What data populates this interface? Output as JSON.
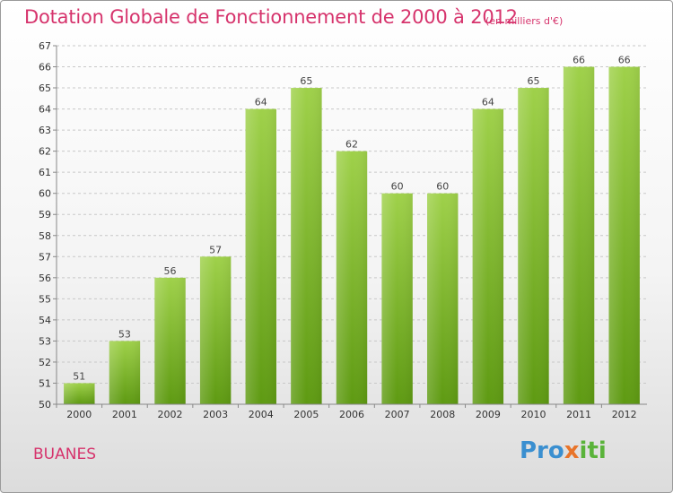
{
  "header": {
    "title": "Dotation Globale de Fonctionnement de 2000 à 2012",
    "unit": "(en milliers d'€)"
  },
  "footer": {
    "commune": "BUANES",
    "logo": [
      "Pro",
      "x",
      "iti"
    ]
  },
  "colors": {
    "accent": "#d6336c",
    "bar_light": "#9fd14a",
    "bar_dark": "#5e9a12"
  },
  "chart_data": {
    "type": "bar",
    "title": "Dotation Globale de Fonctionnement de 2000 à 2012",
    "categories": [
      "2000",
      "2001",
      "2002",
      "2003",
      "2004",
      "2005",
      "2006",
      "2007",
      "2008",
      "2009",
      "2010",
      "2011",
      "2012"
    ],
    "values": [
      51,
      53,
      56,
      57,
      64,
      65,
      62,
      60,
      60,
      64,
      65,
      66,
      66
    ],
    "ylim": [
      50,
      67
    ],
    "yticks": [
      50,
      51,
      52,
      53,
      54,
      55,
      56,
      57,
      58,
      59,
      60,
      61,
      62,
      63,
      64,
      65,
      66,
      67
    ],
    "grid": true,
    "xlabel": "",
    "ylabel": ""
  }
}
